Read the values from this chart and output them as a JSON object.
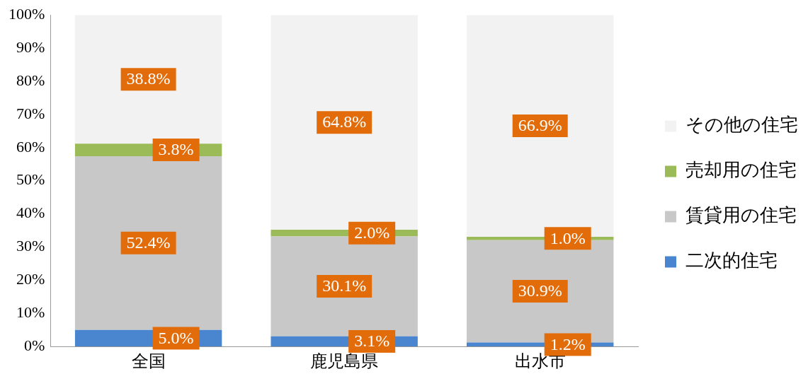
{
  "chart_data": {
    "type": "bar",
    "stacked": true,
    "categories": [
      "全国",
      "鹿児島県",
      "出水市"
    ],
    "series": [
      {
        "name": "二次的住宅",
        "color": "#4a86d0",
        "values": [
          5.0,
          3.1,
          1.2
        ],
        "value_labels": [
          "5.0%",
          "3.1%",
          "1.2%"
        ]
      },
      {
        "name": "賃貸用の住宅",
        "color": "#c8c8c8",
        "values": [
          52.4,
          30.1,
          30.9
        ],
        "value_labels": [
          "52.4%",
          "30.1%",
          "30.9%"
        ]
      },
      {
        "name": "売却用の住宅",
        "color": "#9bbb59",
        "values": [
          3.8,
          2.0,
          1.0
        ],
        "value_labels": [
          "3.8%",
          "2.0%",
          "1.0%"
        ]
      },
      {
        "name": "その他の住宅",
        "color": "#f2f2f2",
        "values": [
          38.8,
          64.8,
          66.9
        ],
        "value_labels": [
          "38.8%",
          "64.8%",
          "66.9%"
        ]
      }
    ],
    "ylim": [
      0,
      100
    ],
    "yticks": [
      {
        "value": 0,
        "label": "0%"
      },
      {
        "value": 10,
        "label": "10%"
      },
      {
        "value": 20,
        "label": "20%"
      },
      {
        "value": 30,
        "label": "30%"
      },
      {
        "value": 40,
        "label": "40%"
      },
      {
        "value": 50,
        "label": "50%"
      },
      {
        "value": 60,
        "label": "60%"
      },
      {
        "value": 70,
        "label": "70%"
      },
      {
        "value": 80,
        "label": "80%"
      },
      {
        "value": 90,
        "label": "90%"
      },
      {
        "value": 100,
        "label": "100%"
      }
    ],
    "grid": false,
    "legend": "right"
  }
}
